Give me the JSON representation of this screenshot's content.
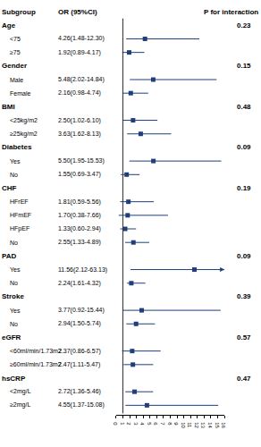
{
  "chart_data": {
    "type": "forest",
    "columns": [
      "Subgroup",
      "OR (95%CI)",
      "P for interaction"
    ],
    "color": "#1f3f7a",
    "marker": "square",
    "xlim": [
      0,
      16
    ],
    "xticks": [
      0,
      1,
      2,
      3,
      4,
      5,
      6,
      7,
      8,
      9,
      10,
      11,
      12,
      13,
      14,
      15,
      16
    ],
    "reference": 1,
    "groups": [
      {
        "name": "Age",
        "p": 0.23,
        "rows": [
          {
            "label": "<75",
            "value": 4.26,
            "lo": 1.48,
            "hi": 12.3,
            "value_label": "4.26(1.48-12.30)"
          },
          {
            "label": "≥75",
            "value": 1.92,
            "lo": 0.89,
            "hi": 4.17,
            "value_label": "1.92(0.89-4.17)"
          }
        ]
      },
      {
        "name": "Gender",
        "p": 0.15,
        "rows": [
          {
            "label": "Male",
            "value": 5.48,
            "lo": 2.02,
            "hi": 14.84,
            "value_label": "5.48(2.02-14.84)"
          },
          {
            "label": "Female",
            "value": 2.16,
            "lo": 0.98,
            "hi": 4.74,
            "value_label": "2.16(0.98-4.74)"
          }
        ]
      },
      {
        "name": "BMI",
        "p": 0.48,
        "rows": [
          {
            "label": "<25kg/m2",
            "value": 2.5,
            "lo": 1.02,
            "hi": 6.1,
            "value_label": "2.50(1.02-6.10)"
          },
          {
            "label": "≥25kg/m2",
            "value": 3.63,
            "lo": 1.62,
            "hi": 8.13,
            "value_label": "3.63(1.62-8.13)"
          }
        ]
      },
      {
        "name": "Diabetes",
        "p": 0.09,
        "rows": [
          {
            "label": "Yes",
            "value": 5.5,
            "lo": 1.95,
            "hi": 15.53,
            "value_label": "5.50(1.95-15.53)"
          },
          {
            "label": "No",
            "value": 1.55,
            "lo": 0.69,
            "hi": 3.47,
            "value_label": "1.55(0.69-3.47)"
          }
        ]
      },
      {
        "name": "CHF",
        "p": 0.19,
        "rows": [
          {
            "label": "HFrEF",
            "value": 1.81,
            "lo": 0.59,
            "hi": 5.56,
            "value_label": "1.81(0.59-5.56)"
          },
          {
            "label": "HFmEF",
            "value": 1.7,
            "lo": 0.38,
            "hi": 7.66,
            "value_label": "1.70(0.38-7.66)"
          },
          {
            "label": "HFpEF",
            "value": 1.33,
            "lo": 0.6,
            "hi": 2.94,
            "value_label": "1.33(0.60-2.94)"
          },
          {
            "label": "No",
            "value": 2.55,
            "lo": 1.33,
            "hi": 4.89,
            "value_label": "2.55(1.33-4.89)"
          }
        ]
      },
      {
        "name": "PAD",
        "p": 0.09,
        "rows": [
          {
            "label": "Yes",
            "value": 11.56,
            "lo": 2.12,
            "hi": 63.13,
            "value_label": "11.56(2.12-63.13)"
          },
          {
            "label": "No",
            "value": 2.24,
            "lo": 1.61,
            "hi": 4.32,
            "value_label": "2.24(1.61-4.32)"
          }
        ]
      },
      {
        "name": "Stroke",
        "p": 0.39,
        "rows": [
          {
            "label": "Yes",
            "value": 3.77,
            "lo": 0.92,
            "hi": 15.44,
            "value_label": "3.77(0.92-15.44)"
          },
          {
            "label": "No",
            "value": 2.94,
            "lo": 1.5,
            "hi": 5.74,
            "value_label": "2.94(1.50-5.74)"
          }
        ]
      },
      {
        "name": "eGFR",
        "p": 0.57,
        "rows": [
          {
            "label": "<60ml/min/1.73m2",
            "value": 2.37,
            "lo": 0.86,
            "hi": 6.57,
            "value_label": "2.37(0.86-6.57)"
          },
          {
            "label": "≥60ml/min/1.73m2",
            "value": 2.47,
            "lo": 1.11,
            "hi": 5.47,
            "value_label": "2.47(1.11-5.47)"
          }
        ]
      },
      {
        "name": "hsCRP",
        "p": 0.47,
        "rows": [
          {
            "label": "<2mg/L",
            "value": 2.72,
            "lo": 1.36,
            "hi": 5.46,
            "value_label": "2.72(1.36-5.46)"
          },
          {
            "label": "≥2mg/L",
            "value": 4.55,
            "lo": 1.37,
            "hi": 15.08,
            "value_label": "4.55(1.37-15.08)"
          }
        ]
      }
    ]
  }
}
